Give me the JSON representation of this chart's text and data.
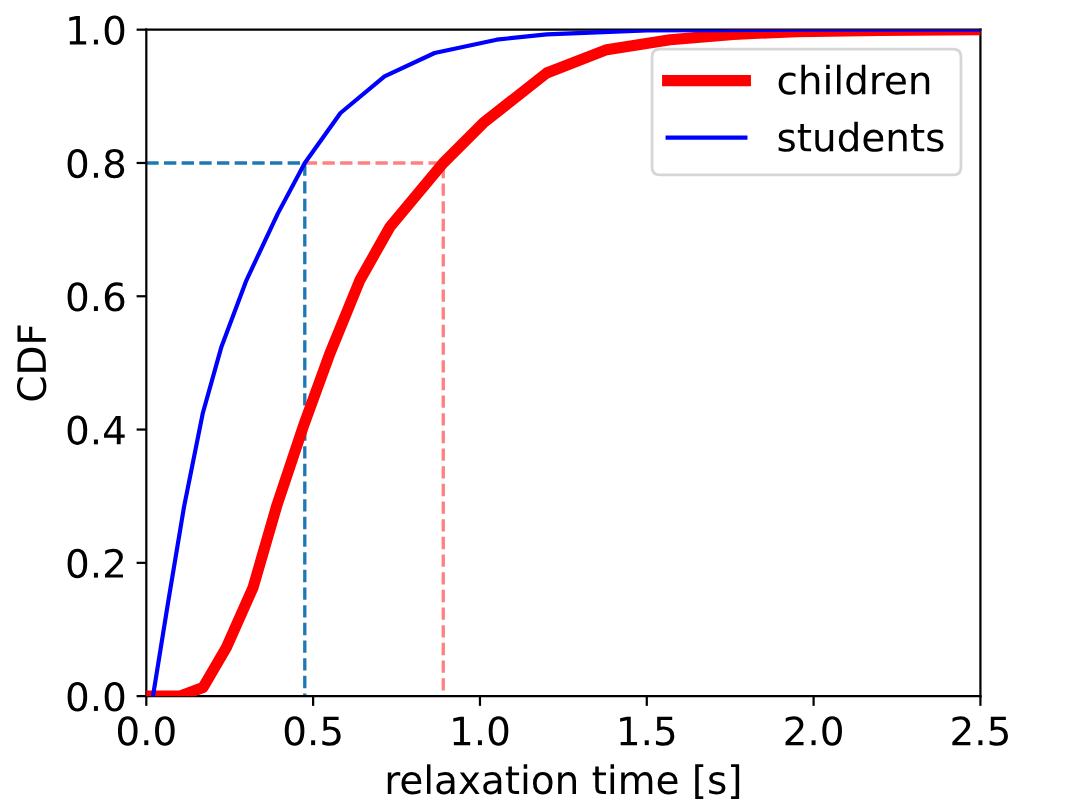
{
  "chart_data": {
    "type": "line",
    "xlabel": "relaxation time [s]",
    "ylabel": "CDF",
    "xlim": [
      0,
      2.5
    ],
    "ylim": [
      0,
      1
    ],
    "xticks": [
      {
        "value": 0,
        "label": "0.0"
      },
      0.5,
      {
        "value": 1,
        "label": "1.0"
      },
      1.5,
      {
        "value": 2,
        "label": "2.0"
      },
      2.5
    ],
    "yticks": [
      {
        "value": 0,
        "label": "0.0"
      },
      0.2,
      0.4,
      0.6,
      0.8,
      {
        "value": 1,
        "label": "1.0"
      }
    ],
    "grid": false,
    "legend": "top right",
    "marker": "none",
    "series": [
      {
        "name": "children",
        "color": "#ff0000",
        "line_style": "solid",
        "x": [
          0,
          0.1,
          0.17,
          0.24,
          0.32,
          0.39,
          0.47,
          0.55,
          0.64,
          0.73,
          0.89,
          1.01,
          1.2,
          1.38,
          1.57,
          1.76,
          1.95,
          2.2,
          2.5
        ],
        "values": [
          0,
          0,
          0.013,
          0.073,
          0.163,
          0.284,
          0.404,
          0.514,
          0.624,
          0.704,
          0.8,
          0.86,
          0.935,
          0.97,
          0.985,
          0.993,
          0.997,
          0.999,
          1.0
        ]
      },
      {
        "name": "students",
        "color": "#0000ff",
        "line_style": "solid",
        "x": [
          0.02,
          0.066,
          0.113,
          0.169,
          0.225,
          0.3,
          0.394,
          0.475,
          0.582,
          0.714,
          0.864,
          1.05,
          1.2,
          1.5,
          2.0,
          2.5
        ],
        "values": [
          0,
          0.143,
          0.284,
          0.424,
          0.524,
          0.624,
          0.724,
          0.8,
          0.875,
          0.93,
          0.965,
          0.985,
          0.993,
          0.999,
          1.0,
          1.0
        ]
      },
      {
        "color": "#1f77b4",
        "line_style": "dashed",
        "x": [
          0,
          0.475,
          0.475
        ],
        "values": [
          0.8,
          0.8,
          0
        ]
      },
      {
        "color": "#ff8080",
        "line_style": "dashed",
        "x": [
          0.475,
          0.89,
          0.89
        ],
        "values": [
          0.8,
          0.8,
          0
        ]
      }
    ]
  }
}
